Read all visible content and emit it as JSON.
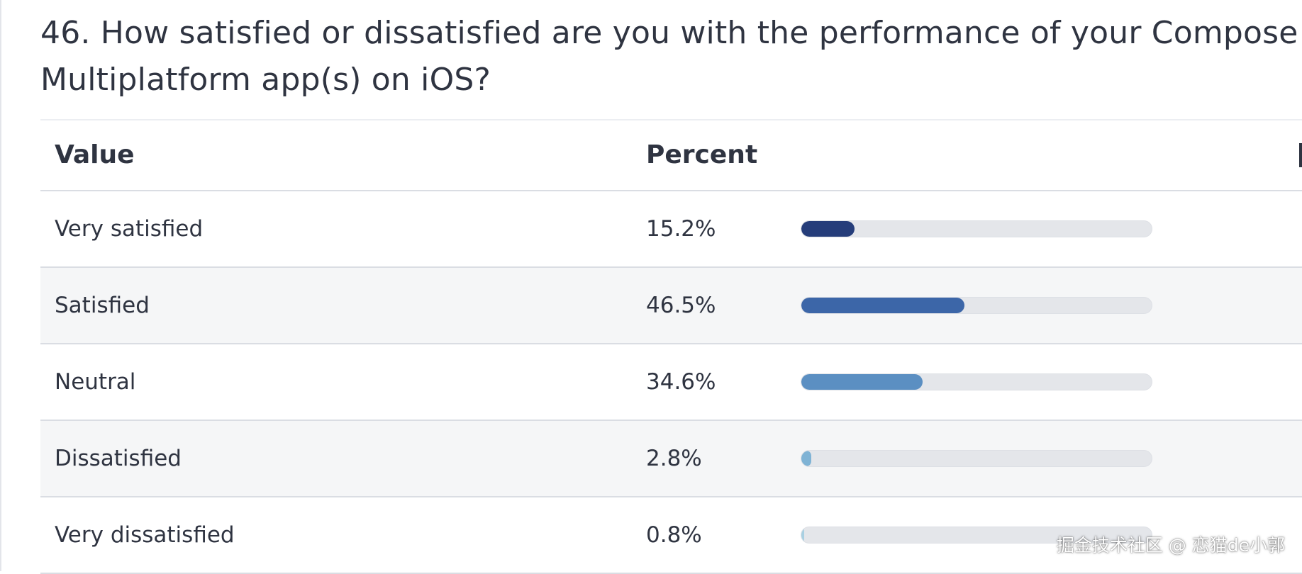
{
  "title": "46. How satisfied or dissatisfied are you with the performance of your Compose Multiplatform app(s) on iOS?",
  "title_lines": [
    "46. How satisfied or dissatisfied are you with the performance of your Compose",
    "Multiplatform app(s) on iOS?"
  ],
  "table": {
    "headers": {
      "value": "Value",
      "percent": "Percent"
    }
  },
  "chart_data": {
    "type": "bar",
    "orientation": "horizontal",
    "categories": [
      "Very satisfied",
      "Satisfied",
      "Neutral",
      "Dissatisfied",
      "Very dissatisfied"
    ],
    "values": [
      15.2,
      46.5,
      34.6,
      2.8,
      0.8
    ],
    "value_labels": [
      "15.2%",
      "46.5%",
      "34.6%",
      "2.8%",
      "0.8%"
    ],
    "xlim": [
      0,
      100
    ],
    "colors": [
      "#253d7a",
      "#3c66a8",
      "#5b8fc2",
      "#7fb3d5",
      "#a9d0e2"
    ],
    "track_color": "#e4e6ea"
  },
  "watermark": "掘金技术社区 @ 恋猫de小郭"
}
